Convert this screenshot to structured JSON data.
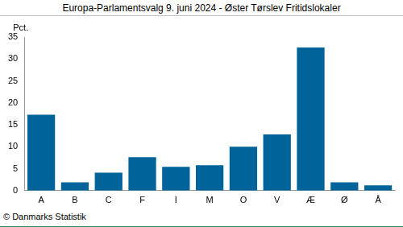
{
  "chart_data": {
    "type": "bar",
    "title": "Europa-Parlamentsvalg 9. juni 2024 - Øster Tørslev Fritidslokaler",
    "y_label": "Pct.",
    "annotations": [
      "© Danmarks Statistik"
    ],
    "categories": [
      "A",
      "B",
      "C",
      "F",
      "I",
      "M",
      "O",
      "V",
      "Æ",
      "Ø",
      "Å"
    ],
    "values": [
      17.3,
      1.9,
      4.1,
      7.6,
      5.4,
      5.8,
      10.0,
      12.8,
      32.6,
      1.9,
      1.2
    ],
    "color": "#00649a",
    "ylim": [
      0,
      35
    ],
    "yticks": [
      0,
      5,
      10,
      15,
      20,
      25,
      30,
      35
    ],
    "grid": false
  }
}
